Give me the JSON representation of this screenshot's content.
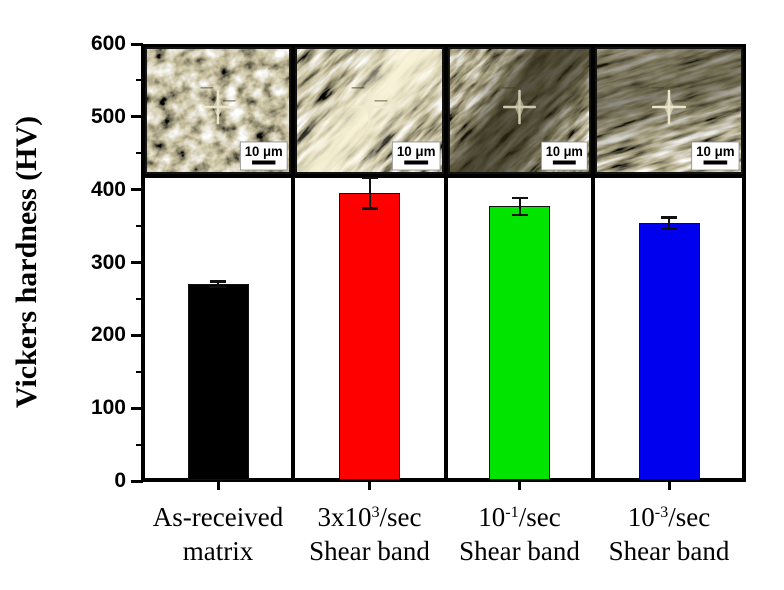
{
  "figure": {
    "ylabel": "Vickers hardness (HV)",
    "description": "Bar chart of Vickers hardness with optical micrograph insets above each bar"
  },
  "chart_data": {
    "type": "bar",
    "title": "",
    "xlabel": "",
    "ylabel": "Vickers hardness (HV)",
    "ylim": [
      0,
      600
    ],
    "ytick_labels": [
      0,
      100,
      200,
      300,
      400,
      500,
      600
    ],
    "ytick_interval": 100,
    "minor_tick_interval": 50,
    "grid": false,
    "legend": false,
    "categories": [
      "As-received matrix",
      "3x10³/sec Shear band",
      "10⁻¹/sec Shear band",
      "10⁻³/sec Shear band"
    ],
    "values": [
      270,
      395,
      377,
      354
    ],
    "errors": [
      4,
      21,
      12,
      8
    ],
    "bar_colors": [
      "#000000",
      "#fe0000",
      "#00e400",
      "#0000ee"
    ],
    "samples": [
      {
        "label_line1": {
          "pre": "As-received",
          "sup": "",
          "post": ""
        },
        "label_line2": "matrix",
        "value": 270,
        "error": 4,
        "color": "#000000",
        "micrograph": {
          "scale_label": "10 μm",
          "description": "random lath microstructure with Vickers indent",
          "base": "#ccc4a2",
          "bf": "0.06 0.075",
          "angle": -20,
          "seed": 7,
          "band": "none"
        }
      },
      {
        "label_line1": {
          "pre": "3x10",
          "sup": "3",
          "post": "/sec"
        },
        "label_line2": "Shear band",
        "value": 395,
        "error": 21,
        "color": "#fe0000",
        "micrograph": {
          "scale_label": "10 μm",
          "description": "light diagonal shear band with Vickers indent",
          "base": "#cbc3a0",
          "bf": "0.025 0.13",
          "angle": -45,
          "seed": 12,
          "band": "light"
        }
      },
      {
        "label_line1": {
          "pre": "10",
          "sup": "-1",
          "post": "/sec"
        },
        "label_line2": "Shear band",
        "value": 377,
        "error": 12,
        "color": "#00e400",
        "micrograph": {
          "scale_label": "10 μm",
          "description": "dark diagonal shear band with Vickers indent",
          "base": "#b2aa88",
          "bf": "0.028 0.14",
          "angle": -42,
          "seed": 29,
          "band": "dark"
        }
      },
      {
        "label_line1": {
          "pre": "10",
          "sup": "-3",
          "post": "/sec"
        },
        "label_line2": "Shear band",
        "value": 354,
        "error": 8,
        "color": "#0000ee",
        "micrograph": {
          "scale_label": "10 μm",
          "description": "elongated flow microstructure with dark band and Vickers indent",
          "base": "#bdb593",
          "bf": "0.022 0.15",
          "angle": -16,
          "seed": 41,
          "band": "dark-soft"
        }
      }
    ]
  }
}
